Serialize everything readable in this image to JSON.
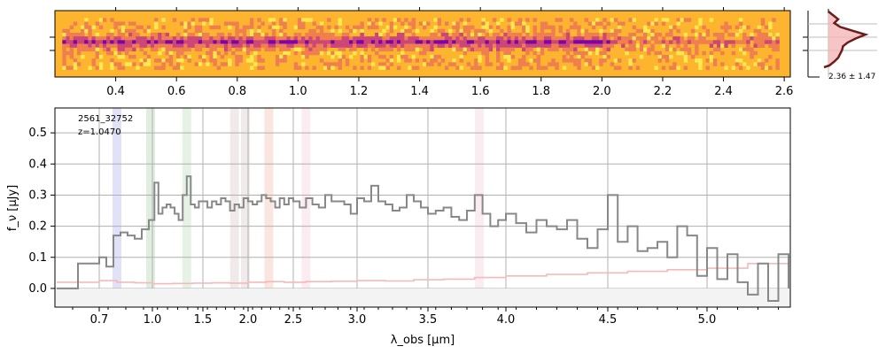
{
  "chart_data": [
    {
      "type": "heatmap",
      "description_id": "2d-spectrum",
      "colormap": [
        "#fdb42f",
        "#f07f4f",
        "#cc4778",
        "#7e03a8"
      ],
      "trace_row": 0.45,
      "top_axis": {
        "ticks": [
          {
            "v": 0.4,
            "label": "0.4"
          },
          {
            "v": 0.6,
            "label": "0.6"
          },
          {
            "v": 0.8,
            "label": "0.8"
          },
          {
            "v": 1.0,
            "label": "1.0"
          },
          {
            "v": 1.2,
            "label": "1.2"
          },
          {
            "v": 1.4,
            "label": "1.4"
          },
          {
            "v": 1.6,
            "label": "1.6"
          },
          {
            "v": 1.8,
            "label": "1.8"
          },
          {
            "v": 2.0,
            "label": "2.0"
          },
          {
            "v": 2.2,
            "label": "2.2"
          },
          {
            "v": 2.4,
            "label": "2.4"
          },
          {
            "v": 2.6,
            "label": "2.6"
          }
        ]
      }
    },
    {
      "type": "line",
      "description_id": "spatial-profile",
      "annotation": "2.36 ± 1.47",
      "profile_color": "#6b1c1c",
      "fill_color": "#f4b6b6"
    },
    {
      "type": "line",
      "description_id": "1d-spectrum",
      "ylabel": "f_ν [μJy]",
      "xlabel": "λ_obs [μm]",
      "annotation_lines": [
        "2561_32752",
        "z=1.0470"
      ],
      "ylim": [
        -0.06,
        0.58
      ],
      "yticks": [
        0.0,
        0.1,
        0.2,
        0.3,
        0.4,
        0.5
      ],
      "ytick_labels": [
        "0.0",
        "0.1",
        "0.2",
        "0.3",
        "0.4",
        "0.5"
      ],
      "xticks": [
        {
          "v": 0.7,
          "label": "0.7"
        },
        {
          "v": 1.0,
          "label": "1.0"
        },
        {
          "v": 1.5,
          "label": "1.5"
        },
        {
          "v": 2.0,
          "label": "2.0"
        },
        {
          "v": 2.5,
          "label": "2.5"
        },
        {
          "v": 3.0,
          "label": "3.0"
        },
        {
          "v": 3.5,
          "label": "3.5"
        },
        {
          "v": 4.0,
          "label": "4.0"
        },
        {
          "v": 4.5,
          "label": "4.5"
        },
        {
          "v": 5.0,
          "label": "5.0"
        }
      ],
      "line_markers": [
        {
          "x": 0.8,
          "color": "#c8c8f0"
        },
        {
          "x": 0.99,
          "color": "#c4e0c4"
        },
        {
          "x": 1.34,
          "color": "#cfe8cf"
        },
        {
          "x": 1.85,
          "color": "#e6d8d8"
        },
        {
          "x": 1.97,
          "color": "#e6d8d8"
        },
        {
          "x": 2.23,
          "color": "#f8d0c8"
        },
        {
          "x": 2.6,
          "color": "#f6dde6"
        },
        {
          "x": 3.83,
          "color": "#f8dde8"
        }
      ],
      "series": [
        {
          "name": "",
          "color": "#888888",
          "x": [
            0.62,
            0.66,
            0.7,
            0.74,
            0.78,
            0.82,
            0.86,
            0.9,
            0.94,
            0.98,
            1.02,
            1.06,
            1.1,
            1.14,
            1.18,
            1.22,
            1.26,
            1.3,
            1.34,
            1.38,
            1.42,
            1.46,
            1.5,
            1.55,
            1.6,
            1.65,
            1.7,
            1.75,
            1.8,
            1.85,
            1.9,
            1.95,
            2.0,
            2.05,
            2.1,
            2.15,
            2.2,
            2.25,
            2.3,
            2.35,
            2.4,
            2.45,
            2.5,
            2.55,
            2.6,
            2.65,
            2.7,
            2.75,
            2.8,
            2.85,
            2.9,
            2.95,
            3.0,
            3.05,
            3.1,
            3.15,
            3.2,
            3.25,
            3.3,
            3.35,
            3.4,
            3.45,
            3.5,
            3.55,
            3.6,
            3.65,
            3.7,
            3.75,
            3.8,
            3.85,
            3.9,
            3.95,
            4.0,
            4.05,
            4.1,
            4.15,
            4.2,
            4.25,
            4.3,
            4.35,
            4.4,
            4.45,
            4.5,
            4.55,
            4.6,
            4.65,
            4.7,
            4.75,
            4.8,
            4.85,
            4.9,
            4.95,
            5.0,
            5.05,
            5.1,
            5.15,
            5.2,
            5.25,
            5.3,
            5.35,
            5.4
          ],
          "y": [
            0.0,
            0.08,
            0.1,
            0.07,
            0.17,
            0.18,
            0.17,
            0.16,
            0.19,
            0.22,
            0.34,
            0.24,
            0.26,
            0.27,
            0.26,
            0.24,
            0.22,
            0.3,
            0.36,
            0.27,
            0.26,
            0.28,
            0.28,
            0.26,
            0.28,
            0.27,
            0.29,
            0.28,
            0.25,
            0.27,
            0.26,
            0.29,
            0.28,
            0.27,
            0.28,
            0.3,
            0.29,
            0.28,
            0.26,
            0.29,
            0.27,
            0.29,
            0.28,
            0.26,
            0.29,
            0.27,
            0.26,
            0.3,
            0.28,
            0.28,
            0.27,
            0.24,
            0.29,
            0.28,
            0.33,
            0.28,
            0.27,
            0.25,
            0.26,
            0.3,
            0.28,
            0.26,
            0.24,
            0.25,
            0.26,
            0.23,
            0.22,
            0.25,
            0.3,
            0.24,
            0.2,
            0.22,
            0.24,
            0.21,
            0.18,
            0.22,
            0.2,
            0.19,
            0.22,
            0.16,
            0.13,
            0.19,
            0.3,
            0.15,
            0.2,
            0.12,
            0.13,
            0.15,
            0.1,
            0.2,
            0.17,
            0.04,
            0.13,
            0.03,
            0.11,
            0.02,
            -0.02,
            0.08,
            -0.04,
            0.11,
            0.0
          ]
        },
        {
          "name": "",
          "color": "#f6b9b9",
          "x": [
            0.62,
            0.7,
            0.8,
            0.9,
            1.0,
            1.2,
            1.4,
            1.6,
            1.8,
            2.0,
            2.2,
            2.4,
            2.6,
            2.8,
            3.0,
            3.2,
            3.4,
            3.6,
            3.8,
            4.0,
            4.2,
            4.4,
            4.6,
            4.8,
            5.0,
            5.2,
            5.4
          ],
          "y": [
            0.02,
            0.025,
            0.02,
            0.018,
            0.015,
            0.016,
            0.017,
            0.018,
            0.017,
            0.02,
            0.022,
            0.02,
            0.022,
            0.023,
            0.025,
            0.024,
            0.028,
            0.03,
            0.035,
            0.04,
            0.045,
            0.05,
            0.055,
            0.06,
            0.065,
            0.08,
            0.09
          ]
        }
      ]
    }
  ]
}
